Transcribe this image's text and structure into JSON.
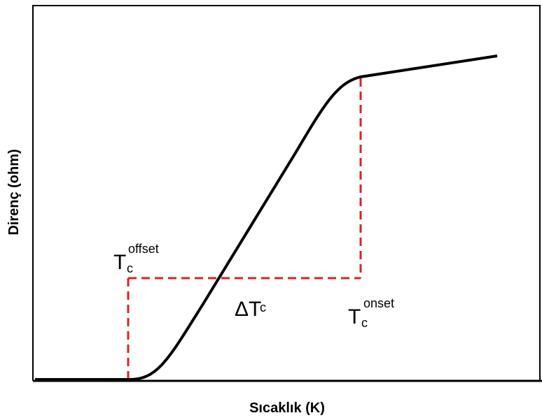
{
  "axes": {
    "x_label": "Sıcaklık (K)",
    "y_label": "Direnç (ohm)"
  },
  "annotations": {
    "offset": {
      "main": "T",
      "sub": "c",
      "sup": "offset"
    },
    "delta": {
      "main": "ΔT",
      "sub": "c"
    },
    "onset": {
      "main": "T",
      "sub": "c",
      "sup": "onset"
    }
  }
}
